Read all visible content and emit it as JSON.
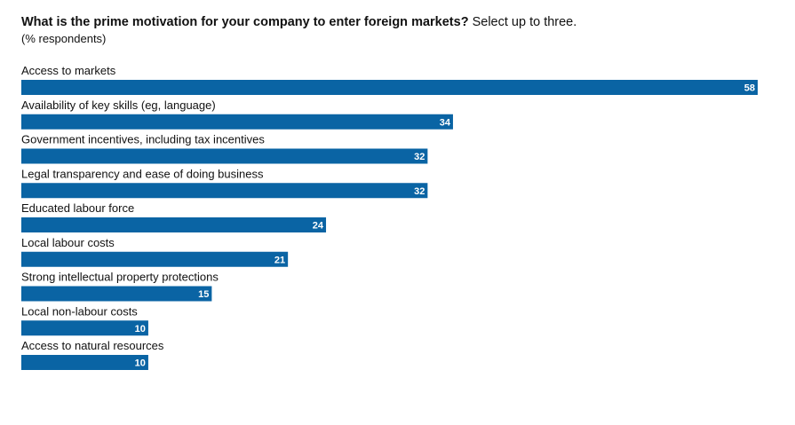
{
  "header": {
    "question": "What is the prime motivation for your company to enter foreign markets?",
    "instruction": "Select up to three.",
    "unit_note": "(% respondents)"
  },
  "colors": {
    "bar": "#0a64a4",
    "value_text": "#ffffff",
    "label_text": "#111111"
  },
  "chart_data": {
    "type": "bar",
    "orientation": "horizontal",
    "categories": [
      "Access to markets",
      "Availability of key skills (eg, language)",
      "Government incentives, including tax incentives",
      "Legal transparency and ease of doing business",
      "Educated labour force",
      "Local labour costs",
      "Strong intellectual property protections",
      "Local non-labour costs",
      "Access to natural resources"
    ],
    "values": [
      58,
      34,
      32,
      32,
      24,
      21,
      15,
      10,
      10
    ],
    "title": "What is the prime motivation for your company to enter foreign markets? Select up to three.",
    "subtitle": "(% respondents)",
    "xlabel": "",
    "ylabel": "",
    "xlim": [
      0,
      58
    ],
    "grid": false,
    "legend": "none",
    "data_labels": "inside-end"
  }
}
